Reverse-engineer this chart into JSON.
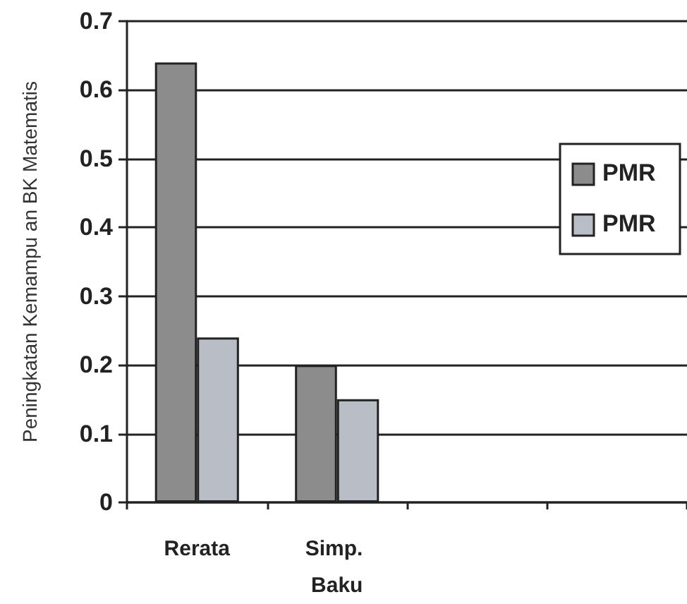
{
  "chart_data": {
    "type": "bar",
    "ylabel": "Peningkatan Kemampu an BK Matematis",
    "categories": [
      "Rerata",
      "Simp. Baku",
      null,
      null
    ],
    "series": [
      {
        "name": "PMR",
        "color": "#8c8c8c",
        "values": [
          0.64,
          0.2,
          null,
          null
        ]
      },
      {
        "name": "PMR",
        "color": "#b9bdc5",
        "values": [
          0.24,
          0.15,
          null,
          null
        ]
      }
    ],
    "ylim": [
      0,
      0.7
    ],
    "yticks": [
      0,
      0.1,
      0.2,
      0.3,
      0.4,
      0.5,
      0.6,
      0.7
    ],
    "grid": "y",
    "legend": "right"
  }
}
